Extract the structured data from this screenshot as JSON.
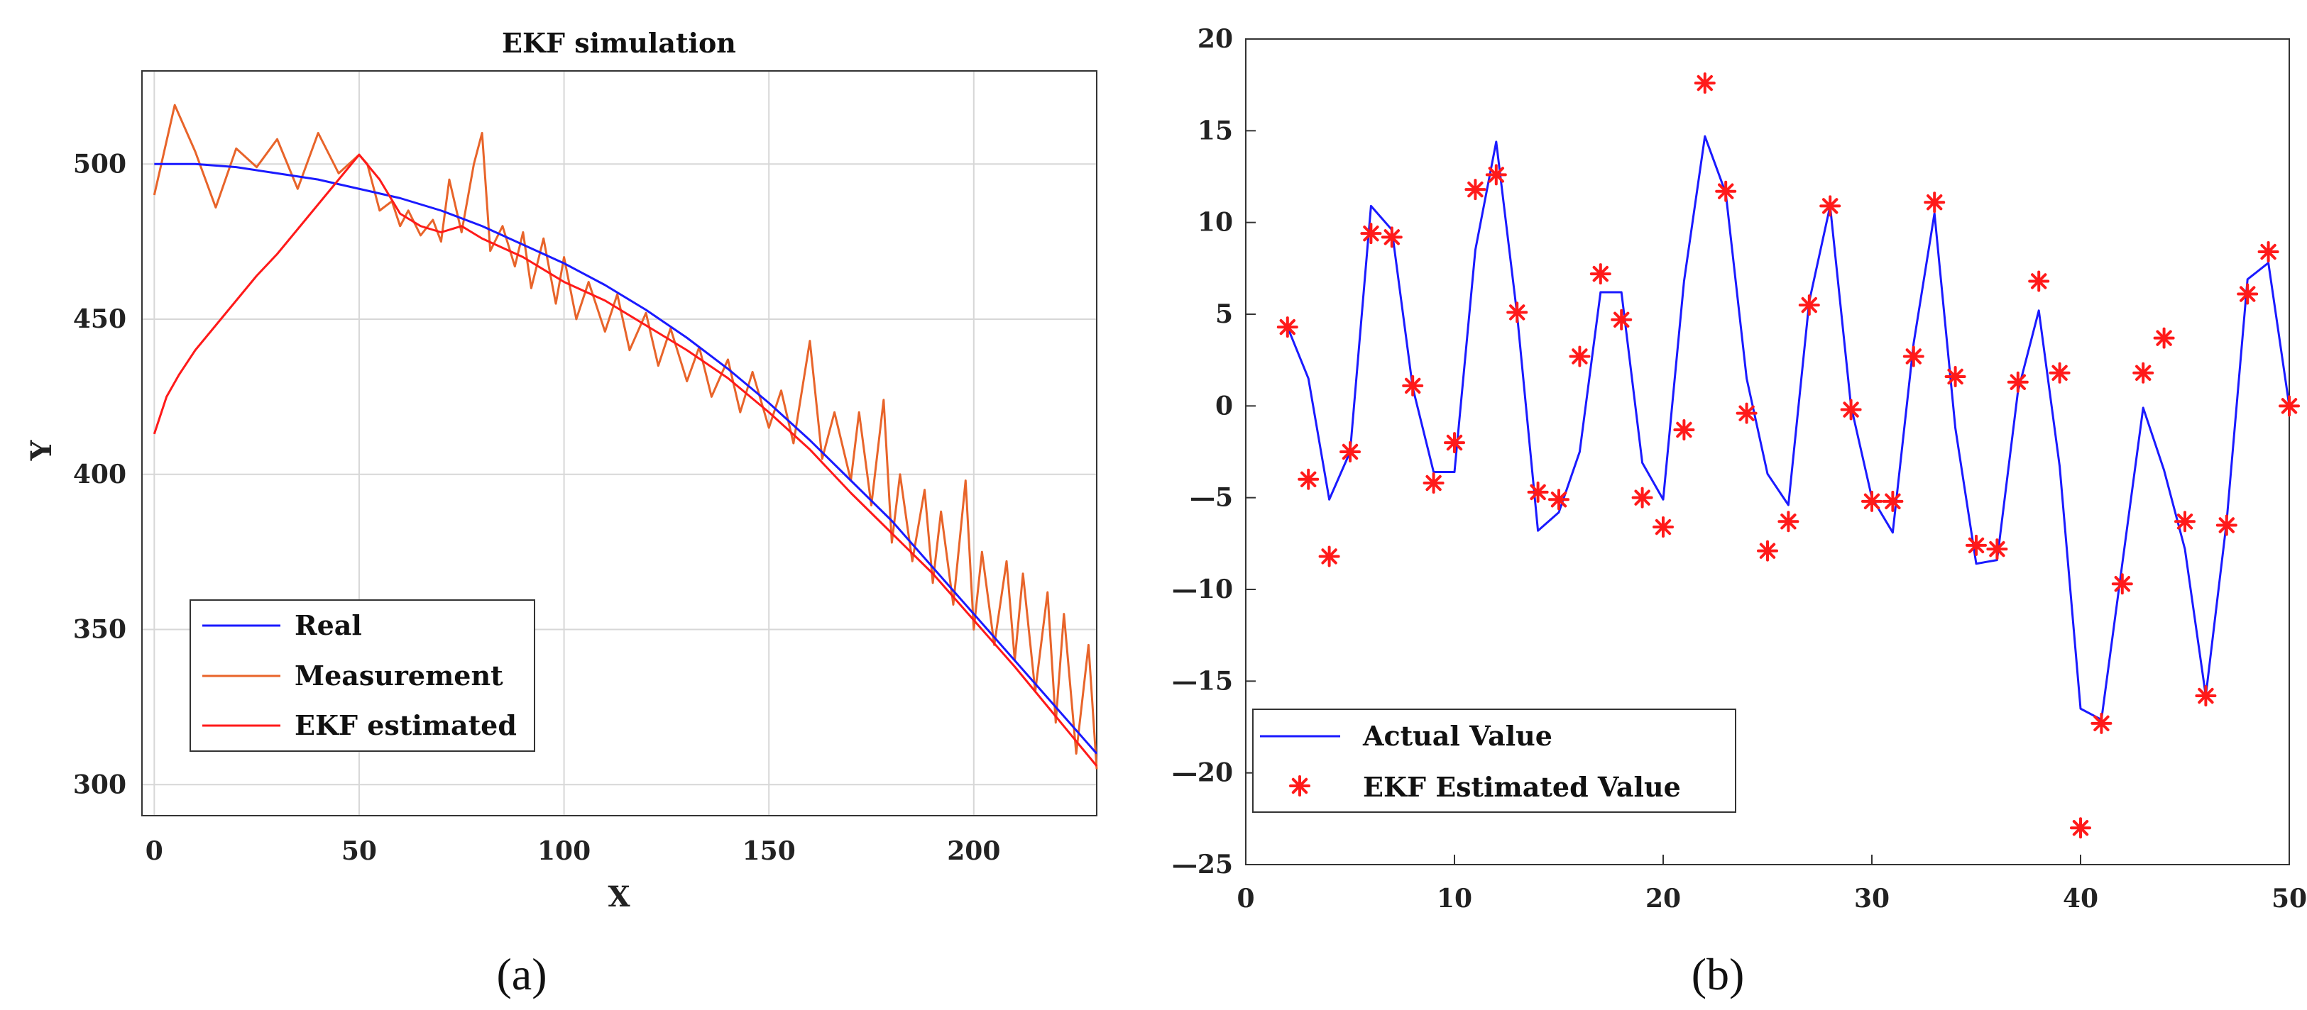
{
  "chart_data": [
    {
      "type": "line",
      "panel": "(a)",
      "title": "EKF simulation",
      "xlabel": "X",
      "ylabel": "Y",
      "xlim": [
        -3,
        230
      ],
      "ylim": [
        290,
        530
      ],
      "xticks": [
        0,
        50,
        100,
        150,
        200
      ],
      "yticks": [
        300,
        350,
        400,
        450,
        500
      ],
      "grid": true,
      "legend_position": "bottom-left",
      "series": [
        {
          "name": "Real",
          "color": "#1a1aff",
          "x": [
            0,
            10,
            20,
            30,
            40,
            50,
            60,
            70,
            80,
            90,
            100,
            110,
            120,
            130,
            140,
            150,
            160,
            170,
            180,
            190,
            200,
            210,
            220,
            230
          ],
          "y": [
            500,
            500,
            499,
            497,
            495,
            492,
            489,
            485,
            480,
            474,
            468,
            461,
            453,
            444,
            434,
            423,
            411,
            398,
            385,
            370,
            355,
            340,
            325,
            310
          ]
        },
        {
          "name": "Measurement",
          "color": "#e8642a",
          "x": [
            0,
            5,
            10,
            15,
            20,
            25,
            30,
            35,
            40,
            45,
            50,
            52,
            55,
            58,
            60,
            62,
            65,
            68,
            70,
            72,
            75,
            78,
            80,
            82,
            85,
            88,
            90,
            92,
            95,
            98,
            100,
            103,
            106,
            110,
            113,
            116,
            120,
            123,
            126,
            130,
            133,
            136,
            140,
            143,
            146,
            150,
            153,
            156,
            160,
            163,
            166,
            170,
            172,
            175,
            178,
            180,
            182,
            185,
            188,
            190,
            192,
            195,
            198,
            200,
            202,
            205,
            208,
            210,
            212,
            215,
            218,
            220,
            222,
            225,
            228,
            230
          ],
          "y": [
            490,
            519,
            504,
            486,
            505,
            499,
            508,
            492,
            510,
            497,
            503,
            500,
            485,
            488,
            480,
            485,
            477,
            482,
            475,
            495,
            478,
            500,
            510,
            472,
            480,
            467,
            478,
            460,
            476,
            455,
            470,
            450,
            462,
            446,
            458,
            440,
            452,
            435,
            447,
            430,
            441,
            425,
            437,
            420,
            433,
            415,
            427,
            410,
            443,
            405,
            420,
            398,
            420,
            390,
            424,
            378,
            400,
            372,
            395,
            365,
            388,
            358,
            398,
            350,
            375,
            345,
            372,
            340,
            368,
            330,
            362,
            320,
            355,
            310,
            345,
            305
          ]
        },
        {
          "name": "EKF estimated",
          "color": "#ff1a1a",
          "x": [
            0,
            3,
            6,
            10,
            15,
            20,
            25,
            30,
            35,
            40,
            45,
            50,
            55,
            60,
            65,
            70,
            75,
            80,
            90,
            100,
            110,
            120,
            130,
            140,
            150,
            160,
            170,
            180,
            190,
            200,
            210,
            220,
            230
          ],
          "y": [
            413,
            425,
            432,
            440,
            448,
            456,
            464,
            471,
            479,
            487,
            495,
            503,
            495,
            484,
            480,
            478,
            480,
            476,
            470,
            462,
            456,
            448,
            440,
            431,
            420,
            408,
            394,
            381,
            368,
            353,
            338,
            322,
            306
          ]
        }
      ]
    },
    {
      "type": "line",
      "panel": "(b)",
      "title": "",
      "xlabel": "",
      "ylabel": "",
      "xlim": [
        0,
        50
      ],
      "ylim": [
        -25,
        20
      ],
      "xticks": [
        0,
        10,
        20,
        30,
        40,
        50
      ],
      "yticks": [
        20,
        15,
        10,
        5,
        0,
        -5,
        -10,
        -15,
        -20,
        -25
      ],
      "ytick_labels": [
        "20",
        "15",
        "10",
        "5",
        "0",
        "—5",
        "—10",
        "—15",
        "—20",
        "—25"
      ],
      "grid": false,
      "legend_position": "bottom-left",
      "series": [
        {
          "name": "Actual Value",
          "color": "#1a1aff",
          "style": "line",
          "x": [
            2,
            3,
            4,
            5,
            6,
            7,
            8,
            9,
            10,
            11,
            12,
            13,
            14,
            15,
            16,
            17,
            18,
            19,
            20,
            21,
            22,
            23,
            24,
            25,
            26,
            27,
            28,
            29,
            30,
            31,
            32,
            33,
            34,
            35,
            36,
            37,
            38,
            39,
            40,
            41,
            42,
            43,
            44,
            45,
            46,
            47,
            48,
            49,
            50
          ],
          "y": [
            4.3,
            1.5,
            -5.1,
            -2.5,
            10.9,
            9.6,
            1.0,
            -3.6,
            -3.6,
            8.5,
            14.4,
            5.0,
            -6.8,
            -5.8,
            -2.5,
            6.2,
            6.2,
            -3.1,
            -5.1,
            6.8,
            14.7,
            11.6,
            1.5,
            -3.7,
            -5.4,
            5.7,
            10.9,
            0.0,
            -5.0,
            -6.9,
            3.4,
            10.5,
            -1.2,
            -8.6,
            -8.4,
            0.8,
            5.2,
            -3.3,
            -16.5,
            -17.1,
            -8.6,
            -0.1,
            -3.5,
            -7.8,
            -15.8,
            -6.3,
            6.9,
            7.8,
            0.0
          ]
        },
        {
          "name": "EKF Estimated Value",
          "color": "#ff1a1a",
          "style": "marker",
          "x": [
            2,
            3,
            4,
            5,
            6,
            7,
            8,
            9,
            10,
            11,
            12,
            13,
            14,
            15,
            16,
            17,
            18,
            19,
            20,
            21,
            22,
            23,
            24,
            25,
            26,
            27,
            28,
            29,
            30,
            31,
            32,
            33,
            34,
            35,
            36,
            37,
            38,
            39,
            40,
            41,
            42,
            43,
            44,
            45,
            46,
            47,
            48,
            49,
            50
          ],
          "y": [
            4.3,
            -4.0,
            -8.2,
            -2.5,
            9.4,
            9.2,
            1.1,
            -4.2,
            -2.0,
            11.8,
            12.6,
            5.1,
            -4.7,
            -5.1,
            2.7,
            7.2,
            4.7,
            -5.0,
            -6.6,
            -1.3,
            17.6,
            11.7,
            -0.4,
            -7.9,
            -6.3,
            5.5,
            10.9,
            -0.2,
            -5.2,
            -5.2,
            2.7,
            11.1,
            1.6,
            -7.6,
            -7.8,
            1.3,
            6.8,
            1.8,
            -23.0,
            -17.3,
            -9.7,
            1.8,
            3.7,
            -6.3,
            -15.8,
            -6.5,
            6.1,
            8.4,
            0.0
          ]
        }
      ]
    }
  ],
  "captions": {
    "a": "(a)",
    "b": "(b)"
  }
}
